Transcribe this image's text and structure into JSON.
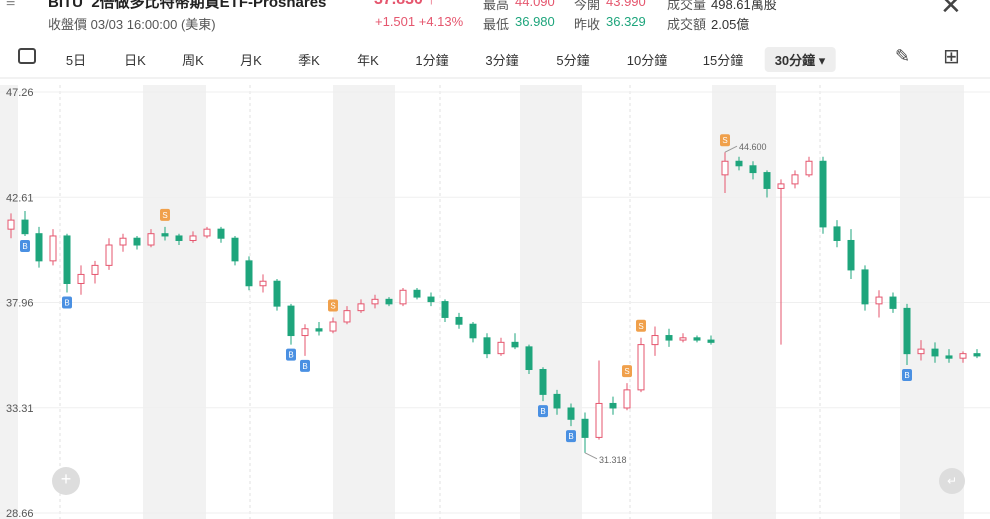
{
  "header": {
    "symbol": "BITU",
    "name": "2倍做多比特幣期貨ETF-Proshares",
    "price": "37.830",
    "status": "收盤價 03/03 16:00:00 (美東)",
    "change": "+1.501 +4.13%",
    "stats": [
      [
        "最高",
        "44.090"
      ],
      [
        "今開",
        "43.990"
      ],
      [
        "成交量",
        "498.61萬股"
      ],
      [
        "最低",
        "36.980"
      ],
      [
        "昨收",
        "36.329"
      ],
      [
        "成交額",
        "2.05億"
      ]
    ]
  },
  "tabs": [
    "5日",
    "日K",
    "周K",
    "月K",
    "季K",
    "年K",
    "1分鐘",
    "3分鐘",
    "5分鐘",
    "10分鐘",
    "15分鐘",
    "30分鐘"
  ],
  "active_tab": "30分鐘",
  "chart_data": {
    "type": "candlestick",
    "ylim": [
      28.66,
      47.26
    ],
    "yticks": [
      47.26,
      42.61,
      37.96,
      33.31,
      28.66
    ],
    "up_color": "#e5566e",
    "down_color": "#1ea57c",
    "open": [
      41.2,
      41.6,
      41.0,
      39.8,
      40.9,
      38.8,
      39.2,
      39.6,
      40.5,
      40.8,
      40.5,
      41.0,
      40.9,
      40.7,
      40.9,
      41.2,
      40.8,
      39.8,
      38.7,
      38.9,
      37.8,
      36.5,
      36.8,
      36.7,
      37.1,
      37.6,
      37.9,
      38.1,
      37.9,
      38.5,
      38.2,
      38.0,
      37.3,
      37.0,
      36.4,
      35.7,
      36.2,
      36.0,
      35.0,
      33.9,
      33.3,
      32.8,
      32.0,
      33.5,
      33.3,
      34.1,
      36.1,
      36.5,
      36.3,
      36.4,
      36.3,
      43.6,
      44.2,
      44.0,
      43.7,
      43.0,
      43.2,
      43.6,
      44.2,
      41.3,
      40.7,
      39.4,
      37.9,
      38.2,
      37.7,
      35.7,
      35.9,
      35.6,
      35.5,
      35.7
    ],
    "high": [
      41.9,
      42.0,
      41.3,
      41.2,
      41.0,
      39.6,
      39.8,
      40.8,
      41.0,
      40.9,
      41.2,
      41.3,
      41.0,
      41.1,
      41.3,
      41.3,
      40.9,
      40.0,
      39.2,
      39.0,
      37.9,
      37.0,
      37.1,
      37.3,
      37.8,
      38.1,
      38.3,
      38.2,
      38.6,
      38.6,
      38.4,
      38.1,
      37.5,
      37.1,
      36.6,
      36.4,
      36.6,
      36.1,
      35.1,
      34.1,
      33.5,
      33.1,
      35.4,
      33.8,
      34.4,
      36.4,
      36.9,
      36.8,
      36.6,
      36.5,
      36.5,
      44.6,
      44.4,
      44.2,
      43.8,
      43.4,
      43.8,
      44.4,
      44.4,
      41.6,
      41.2,
      39.6,
      38.5,
      38.4,
      37.9,
      36.3,
      36.2,
      35.9,
      35.8,
      35.9
    ],
    "low": [
      40.8,
      40.9,
      39.5,
      39.6,
      38.4,
      38.3,
      38.8,
      39.4,
      40.2,
      40.3,
      40.4,
      40.7,
      40.5,
      40.6,
      40.8,
      40.6,
      39.6,
      38.5,
      38.4,
      37.6,
      36.1,
      35.6,
      36.5,
      36.6,
      37.0,
      37.5,
      37.7,
      37.8,
      37.8,
      38.1,
      37.8,
      37.1,
      36.8,
      36.2,
      35.5,
      35.6,
      35.9,
      34.8,
      33.6,
      33.0,
      32.5,
      31.318,
      31.9,
      33.0,
      33.2,
      34.0,
      35.6,
      36.0,
      36.2,
      36.2,
      36.1,
      42.8,
      43.8,
      43.4,
      42.6,
      36.1,
      43.0,
      43.5,
      41.0,
      40.4,
      39.0,
      37.6,
      37.3,
      37.5,
      35.2,
      35.4,
      35.3,
      35.3,
      35.3,
      35.5
    ],
    "close": [
      41.6,
      41.0,
      39.8,
      40.9,
      38.8,
      39.2,
      39.6,
      40.5,
      40.8,
      40.5,
      41.0,
      40.9,
      40.7,
      40.9,
      41.2,
      40.8,
      39.8,
      38.7,
      38.9,
      37.8,
      36.5,
      36.8,
      36.7,
      37.1,
      37.6,
      37.9,
      38.1,
      37.9,
      38.5,
      38.2,
      38.0,
      37.3,
      37.0,
      36.4,
      35.7,
      36.2,
      36.0,
      35.0,
      33.9,
      33.3,
      32.8,
      32.0,
      33.5,
      33.3,
      34.1,
      36.1,
      36.5,
      36.3,
      36.4,
      36.3,
      36.2,
      44.2,
      44.0,
      43.7,
      43.0,
      43.2,
      43.6,
      44.2,
      41.3,
      40.7,
      39.4,
      37.9,
      38.2,
      37.7,
      35.7,
      35.9,
      35.6,
      35.5,
      35.7,
      35.6
    ],
    "signals": [
      null,
      "B",
      null,
      null,
      "B",
      null,
      null,
      null,
      null,
      null,
      null,
      "S",
      null,
      null,
      null,
      null,
      null,
      null,
      null,
      null,
      "B",
      "B",
      null,
      "S",
      null,
      null,
      null,
      null,
      null,
      null,
      null,
      null,
      null,
      null,
      null,
      null,
      null,
      null,
      "B",
      null,
      "B",
      null,
      null,
      null,
      "S",
      "S",
      null,
      null,
      null,
      null,
      null,
      "S",
      null,
      null,
      null,
      null,
      null,
      null,
      null,
      null,
      null,
      null,
      null,
      null,
      "B",
      null,
      null,
      null,
      null,
      null
    ],
    "annotations": [
      {
        "value": 44.6,
        "label": "44.600"
      },
      {
        "value": 31.318,
        "label": "31.318"
      }
    ]
  }
}
